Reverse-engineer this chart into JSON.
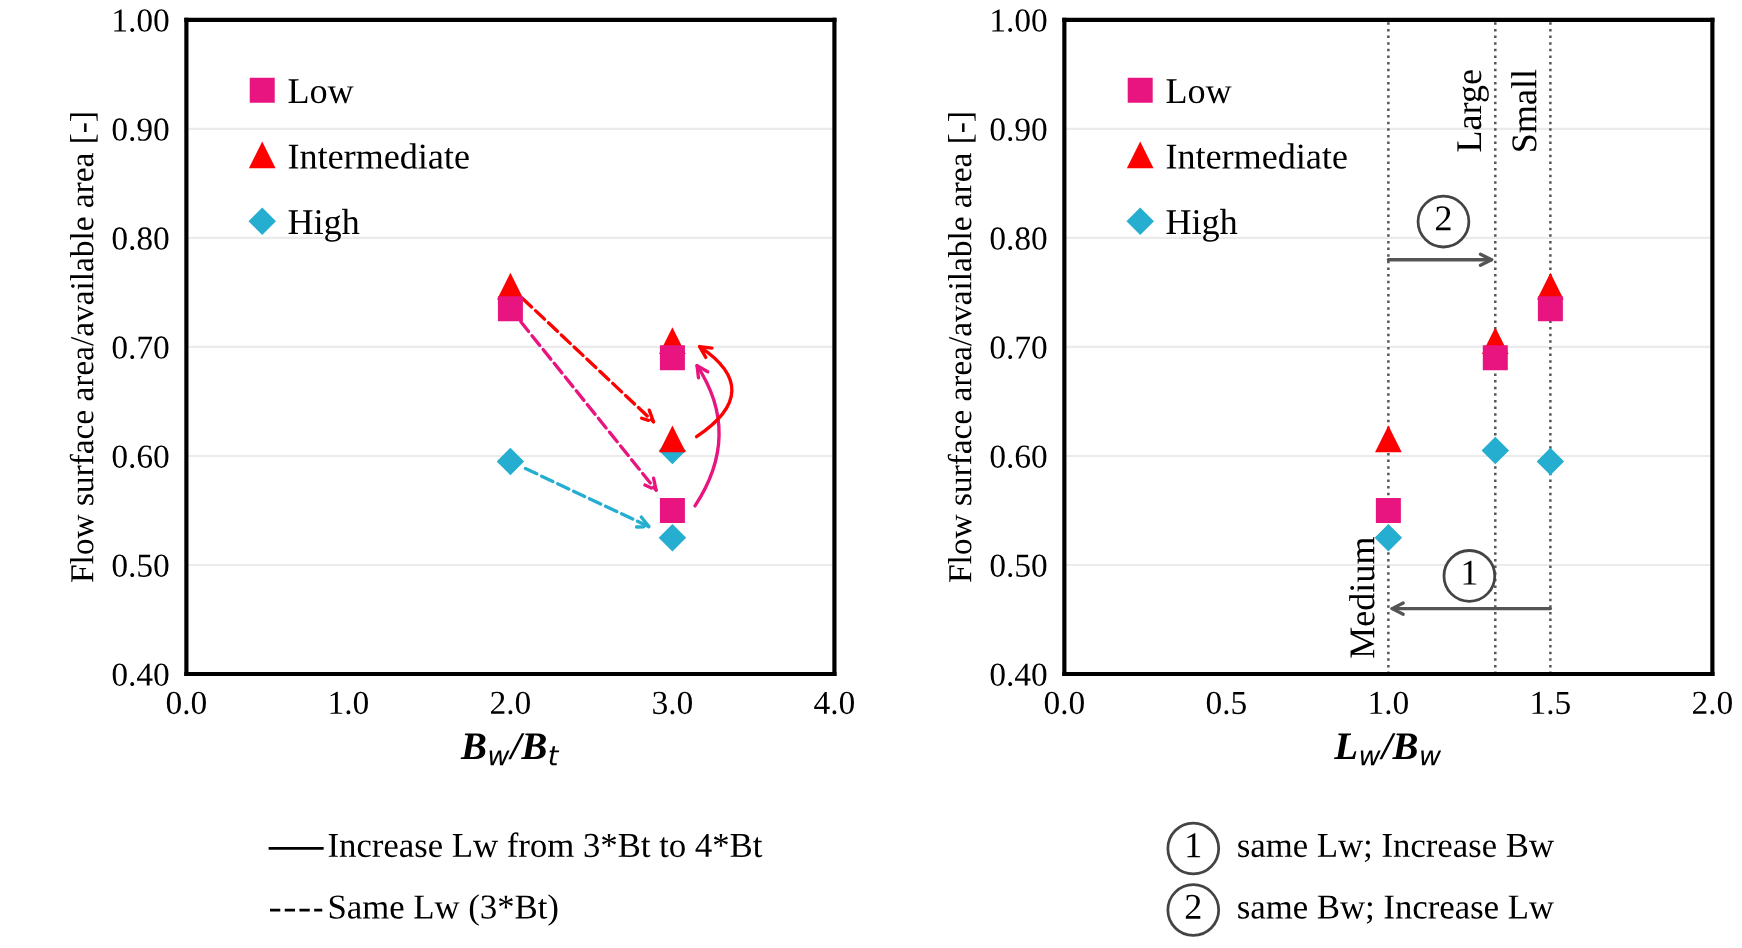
{
  "chart_data": [
    {
      "type": "scatter",
      "x": [
        2,
        3,
        3
      ],
      "xlabel": "B$_{w}$/B$_{t}$",
      "ylabel": "Flow surface area/available area [-]",
      "xlim": [
        0,
        4
      ],
      "ylim": [
        0.4,
        1.0
      ],
      "xticks": [
        {
          "value": 0,
          "label": "0.0"
        },
        {
          "value": 1,
          "label": "1.0"
        },
        {
          "value": 2,
          "label": "2.0"
        },
        {
          "value": 3,
          "label": "3.0"
        },
        {
          "value": 4,
          "label": "4.0"
        }
      ],
      "yticks": [
        {
          "value": 0.4,
          "label": "0.40"
        },
        {
          "value": 0.5,
          "label": "0.50"
        },
        {
          "value": 0.6,
          "label": "0.60"
        },
        {
          "value": 0.7,
          "label": "0.70"
        },
        {
          "value": 0.8,
          "label": "0.80"
        },
        {
          "value": 0.9,
          "label": "0.90"
        },
        {
          "value": 1.0,
          "label": "1.00"
        }
      ],
      "grid": "y",
      "legend": "top left",
      "series": [
        {
          "name": "Low",
          "color": "#e8147f",
          "marker": "square",
          "values": [
            0.735,
            0.55,
            0.69
          ]
        },
        {
          "name": "Intermediate",
          "color": "#ff0000",
          "marker": "triangle",
          "values": [
            0.755,
            0.615,
            0.705
          ]
        },
        {
          "name": "High",
          "color": "#25aed0",
          "marker": "diamond",
          "values": [
            0.595,
            0.525,
            0.605
          ]
        }
      ],
      "annotations": [
        "Increase Lw from 3*Bt to 4*Bt",
        "Same Lw (3*Bt)"
      ]
    },
    {
      "type": "scatter",
      "x": [
        1.0,
        1.33,
        1.5
      ],
      "xlabel": "L$_{w}$/B$_{w}$",
      "ylabel": "Flow surface area/available area [-]",
      "xlim": [
        0,
        2
      ],
      "ylim": [
        0.4,
        1.0
      ],
      "xticks": [
        {
          "value": 0,
          "label": "0.0"
        },
        {
          "value": 0.5,
          "label": "0.5"
        },
        {
          "value": 1,
          "label": "1.0"
        },
        {
          "value": 1.5,
          "label": "1.5"
        },
        {
          "value": 2,
          "label": "2.0"
        }
      ],
      "yticks": [
        {
          "value": 0.4,
          "label": "0.40"
        },
        {
          "value": 0.5,
          "label": "0.50"
        },
        {
          "value": 0.6,
          "label": "0.60"
        },
        {
          "value": 0.7,
          "label": "0.70"
        },
        {
          "value": 0.8,
          "label": "0.80"
        },
        {
          "value": 0.9,
          "label": "0.90"
        },
        {
          "value": 1.0,
          "label": "1.00"
        }
      ],
      "grid": "y",
      "legend": "top left",
      "series": [
        {
          "name": "Low",
          "color": "#e8147f",
          "marker": "square",
          "values": [
            0.55,
            0.69,
            0.735
          ]
        },
        {
          "name": "Intermediate",
          "color": "#ff0000",
          "marker": "triangle",
          "values": [
            0.615,
            0.705,
            0.755
          ]
        },
        {
          "name": "High",
          "color": "#25aed0",
          "marker": "diamond",
          "values": [
            0.525,
            0.605,
            0.595
          ]
        }
      ],
      "ref_lines": [
        {
          "axis": "x",
          "value": 1.0,
          "label": "Medium",
          "line_style": "dotted",
          "color": "#555555"
        },
        {
          "axis": "x",
          "value": 1.33,
          "label": "Large",
          "line_style": "dotted",
          "color": "#555555"
        },
        {
          "axis": "x",
          "value": 1.5,
          "label": "Small",
          "line_style": "dotted",
          "color": "#555555"
        }
      ],
      "annotations": [
        {
          "text": "1",
          "x": 1.25,
          "y": 0.49
        },
        {
          "text": "2",
          "x": 1.17,
          "y": 0.815
        },
        "same Lw; Increase Bw",
        "same Bw; Increase Lw"
      ]
    }
  ]
}
